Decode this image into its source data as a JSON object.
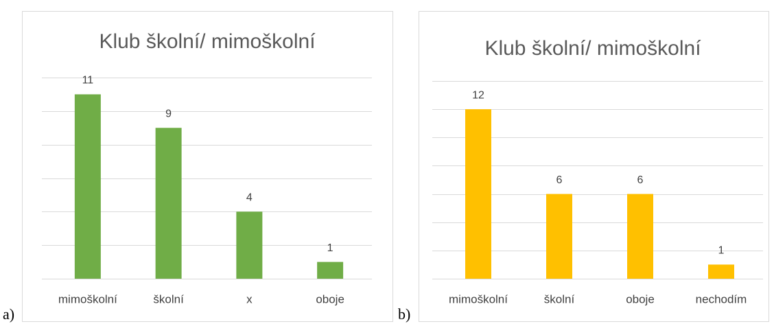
{
  "chart_data": [
    {
      "type": "bar",
      "panel_label": "a)",
      "title": "Klub školní/ mimoškolní",
      "categories": [
        "mimoškolní",
        "školní",
        "x",
        "oboje"
      ],
      "values": [
        11,
        9,
        4,
        1
      ],
      "color": "#70ad47",
      "ylim": [
        0,
        12
      ],
      "yticks": [
        0,
        2,
        4,
        6,
        8,
        10,
        12
      ],
      "grid": true
    },
    {
      "type": "bar",
      "panel_label": "b)",
      "title": "Klub školní/ mimoškolní",
      "categories": [
        "mimoškolní",
        "školní",
        "oboje",
        "nechodím"
      ],
      "values": [
        12,
        6,
        6,
        1
      ],
      "color": "#ffc000",
      "ylim": [
        0,
        14
      ],
      "yticks": [
        0,
        2,
        4,
        6,
        8,
        10,
        12,
        14
      ],
      "grid": true
    }
  ]
}
